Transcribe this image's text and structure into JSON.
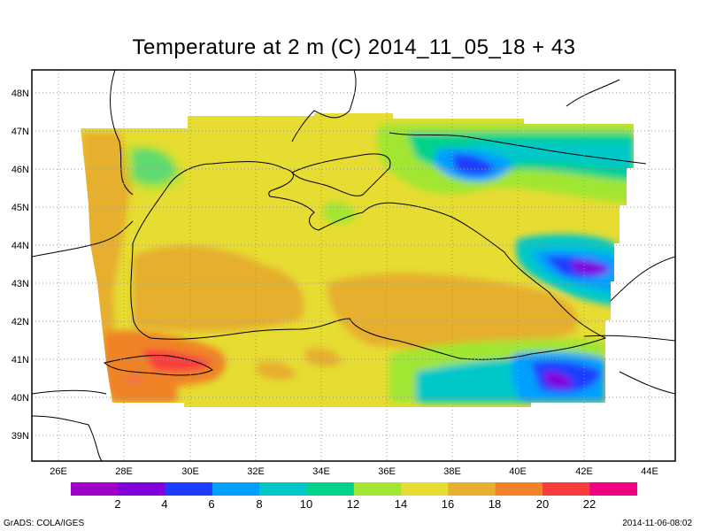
{
  "title": "Temperature at 2 m (C) 2014_11_05_18 + 43",
  "map": {
    "lon_range": [
      25.2,
      44.7
    ],
    "lat_range": [
      38.4,
      48.7
    ],
    "lon_ticks": [
      "26E",
      "28E",
      "30E",
      "32E",
      "34E",
      "36E",
      "38E",
      "40E",
      "42E",
      "44E"
    ],
    "lat_ticks": [
      "39N",
      "40N",
      "41N",
      "42N",
      "43N",
      "44N",
      "45N",
      "46N",
      "47N",
      "48N"
    ],
    "grid": true,
    "region": "Black Sea",
    "variable": "2 m air temperature",
    "units": "C"
  },
  "colorbar": {
    "colors": [
      "#a000c8",
      "#8200dc",
      "#1e3cff",
      "#00a0ff",
      "#00c8c8",
      "#00d28c",
      "#a0e632",
      "#e6dc32",
      "#e6af2d",
      "#f08228",
      "#fa3c3c",
      "#f00082"
    ],
    "labels": [
      "2",
      "4",
      "6",
      "8",
      "10",
      "12",
      "14",
      "16",
      "18",
      "20",
      "22"
    ]
  },
  "footer": {
    "left": "GrADS: COLA/IGES",
    "right": "2014-11-06-08:02"
  }
}
